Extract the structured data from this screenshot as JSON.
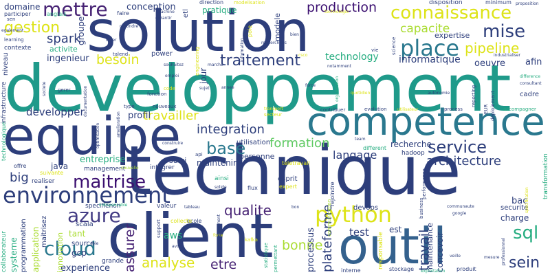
{
  "wordcloud": {
    "palette": {
      "navy": "#2d3e7b",
      "purple": "#472374",
      "dark_purple": "#3b0f70",
      "indigo": "#433c84",
      "blue": "#34618d",
      "steel": "#2a788e",
      "teal": "#1f9a8a",
      "green_teal": "#27ad81",
      "green": "#5ec962",
      "lime": "#aadc32",
      "yellow": "#dde318",
      "bright_yellow": "#fde725"
    },
    "words": {
      "solution": "solution",
      "developpement": "developpement",
      "technique": "technique",
      "client": "client",
      "equipe": "equipe",
      "competence": "competence",
      "outil": "outil",
      "environnement": "environnement",
      "connaissance": "connaissance",
      "mettre": "mettre",
      "production": "production",
      "gestion": "gestion",
      "place": "place",
      "mise": "mise",
      "pipeline": "pipeline",
      "python": "python",
      "cloud": "cloud",
      "azure": "azure",
      "maitrise": "maitrise",
      "service": "service",
      "base": "base",
      "traitement": "traitement",
      "integration": "integration",
      "spark": "spark",
      "capacite": "capacite",
      "formation": "formation",
      "architecture": "architecture",
      "qualite": "qualite",
      "analyse": "analyse",
      "bonne": "bonne",
      "sql": "sql",
      "sein": "sein",
      "etre": "etre",
      "travail": "travail",
      "assurer": "assurer",
      "plateforme": "plateforme",
      "besoin": "besoin",
      "travailler": "travailler",
      "developper": "developper",
      "technology": "technology",
      "langage": "langage",
      "big": "big",
      "informatique": "informatique",
      "experience": "experience",
      "test": "test",
      "ingenieur": "ingenieur",
      "conception": "conception",
      "domaine": "domaine",
      "afin": "afin",
      "oeuvre": "oeuvre",
      "profil": "profil",
      "maintenir": "maintenir",
      "recherche": "recherche",
      "entreprise": "entreprise",
      "aws": "aws",
      "gcp": "gcp",
      "java": "java",
      "tant": "tant",
      "bac": "bac",
      "processus": "processus",
      "concevoir": "concevoir",
      "est": "est",
      "pratique": "pratique",
      "jour": "jour",
      "groupe": "groupe",
      "activite": "activite",
      "expertise": "expertise",
      "maintenance": "maintenance",
      "charge": "charge",
      "securite": "securite",
      "cadre": "cadre",
      "suivi": "suivi",
      "personne": "personne",
      "power": "power",
      "utilisation": "utilisation",
      "devops": "devops",
      "esprit": "esprit",
      "modele": "modele",
      "systeme": "systeme",
      "application": "application",
      "innovation": "innovation",
      "programmation": "programmation",
      "maitrisez": "maitrisez",
      "collaborateur": "collaborateur",
      "scala": "scala",
      "source": "source",
      "grande": "grande",
      "niveau": "niveau",
      "contexte": "contexte",
      "infrastructure": "infrastructure",
      "technologique": "technologique",
      "offre": "offre",
      "realiser": "realiser",
      "suivante": "suivante",
      "management": "management",
      "integrer": "integrer",
      "specifienon": "specifienon",
      "valeur": "valeur",
      "faire": "faire",
      "participer": "participer",
      "anglais": "anglais",
      "sen": "sen",
      "learning": "learning",
      "talend": "talend",
      "direction": "direction",
      "modelisation": "modelisation",
      "etl": "etl",
      "disposition": "disposition",
      "minimum": "minimum",
      "proposition": "proposition",
      "technologie": "technologie",
      "machine": "machine",
      "garantir": "garantir",
      "repondre": "repondre",
      "creer": "creer",
      "engineering": "engineering",
      "souhaitez": "souhaitez",
      "emploi": "emploi",
      "marche": "marche",
      "information": "information",
      "pole": "pole",
      "recherchons": "recherchons",
      "bien": "bien",
      "vie": "vie",
      "science": "science",
      "industrialiser": "industrialiser",
      "notamment": "notamment",
      "csco": "csco",
      "sujet": "sujet",
      "annee": "annee",
      "force": "force",
      "organisation": "organisation",
      "quotidien": "quotidien",
      "autonomie": "autonomie",
      "reporting": "reporting",
      "difference": "difference",
      "consultant": "consultant",
      "deploiement": "deploiement",
      "accompagner": "accompagner",
      "process": "process",
      "eur": "EUR",
      "evolution": "evolution",
      "contribuer": "contribuer",
      "utilisateur": "utilisateur",
      "transport": "transport",
      "secteur": "secteur",
      "nouveaux": "nouveaux",
      "type": "type",
      "fonction": "fonction",
      "code": "code",
      "gerer": "gerer",
      "documentation": "documentation",
      "societe": "societe",
      "optimisation": "optimisation",
      "amelioration": "amelioration",
      "construire": "construire",
      "api": "api",
      "team": "team",
      "hadoop": "hadoop",
      "different": "different",
      "teletravail": "teletravail",
      "rejoindre": "rejoindre",
      "expert": "expert",
      "communication": "communication",
      "ainsi": "ainsi",
      "solide": "solide",
      "flux": "flux",
      "ecole": "ecole",
      "collecte": "collecte",
      "support": "support",
      "tableau": "tableau",
      "indispensable": "indispensable",
      "nouvelle": "nouvelle",
      "business": "business",
      "performance": "performance",
      "communaute": "communaute",
      "google": "google",
      "specification": "specification",
      "transformation": "transformation",
      "professionnel": "professionnel",
      "responsable": "responsable",
      "veille": "veille",
      "mesure": "mesure",
      "interne": "interne",
      "stockage": "stockage",
      "exploitation": "exploitation",
      "produit": "produit",
      "permettant": "permettant",
      "statistique": "statistique",
      "kafka": "kafka",
      "avoir": "avoir",
      "forte": "forte",
      "accompagnement": "accompagnement",
      "role": "role",
      "bon": "bon",
      "egalement": "egalement"
    }
  }
}
